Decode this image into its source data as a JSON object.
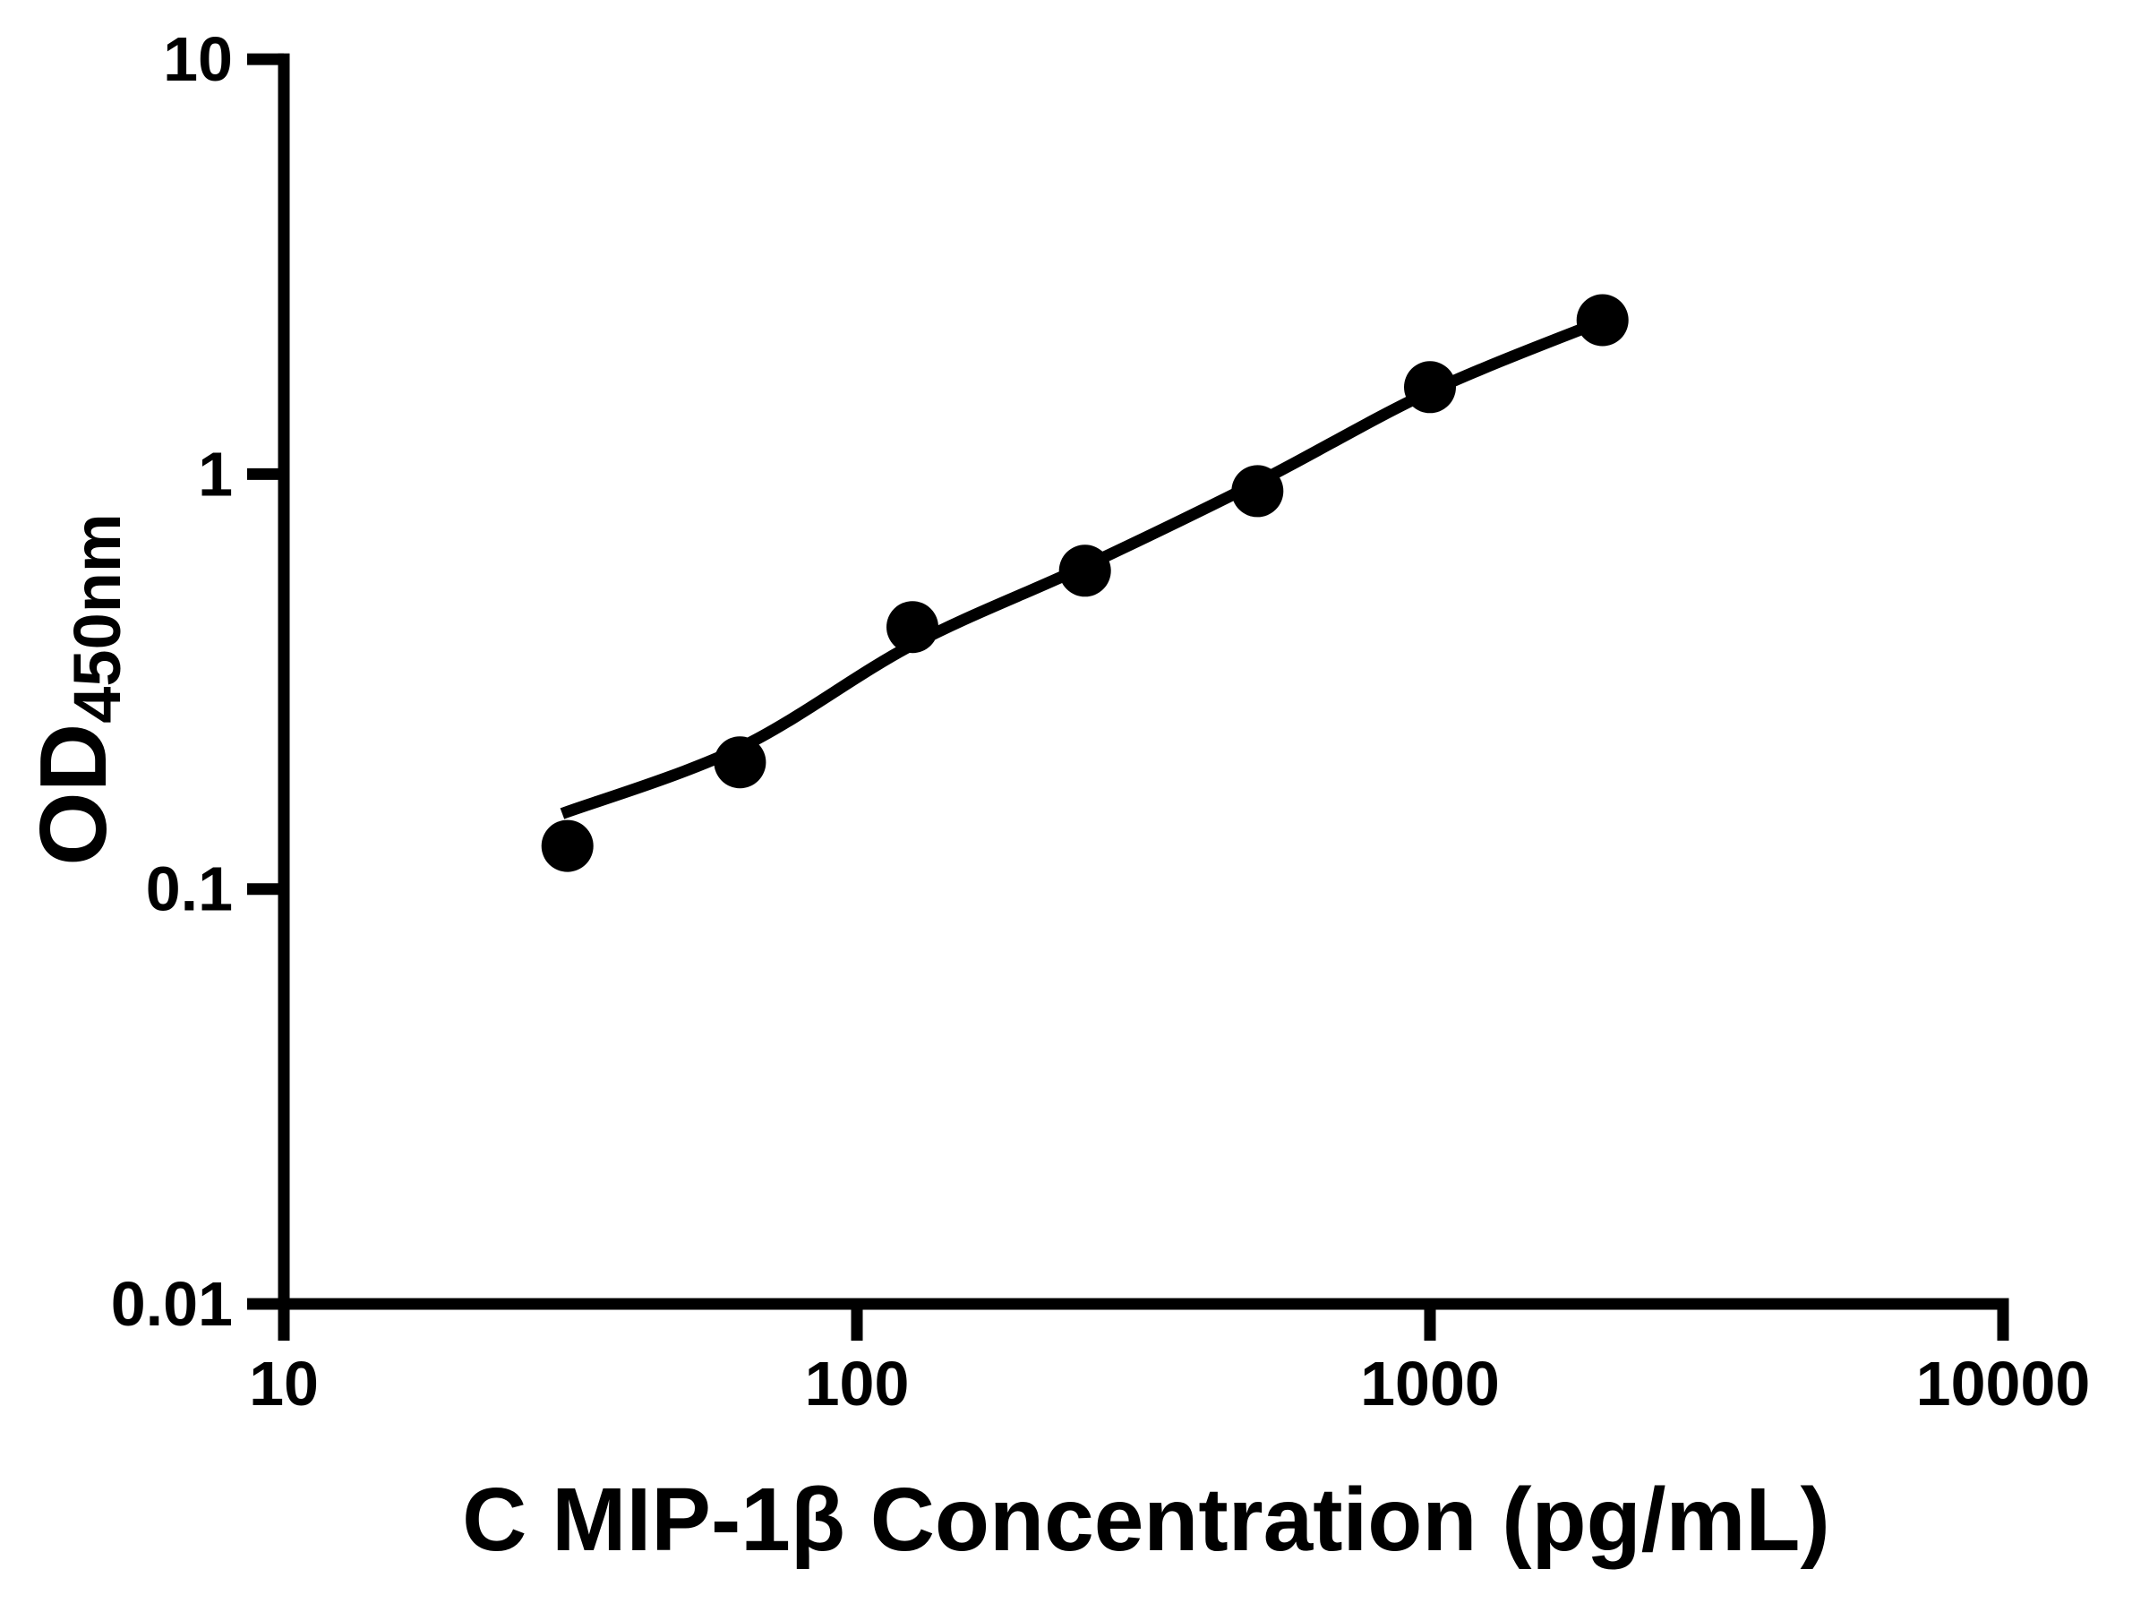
{
  "figure": {
    "background_color": "#ffffff",
    "ink_color": "#000000"
  },
  "chart_data": {
    "type": "scatter",
    "title": "",
    "xlabel": "C MIP-1β Concentration (pg/mL)",
    "ylabel": "OD",
    "ylabel_subscript": "450nm",
    "x_scale": "log",
    "y_scale": "log",
    "xlim": [
      10,
      10000
    ],
    "ylim": [
      0.01,
      10
    ],
    "grid": false,
    "legend": "none",
    "x_ticks": [
      {
        "value": 10,
        "label": "10"
      },
      {
        "value": 100,
        "label": "100"
      },
      {
        "value": 1000,
        "label": "1000"
      },
      {
        "value": 10000,
        "label": "10000"
      }
    ],
    "y_ticks": [
      {
        "value": 10,
        "label": "10"
      },
      {
        "value": 1,
        "label": "1"
      },
      {
        "value": 0.1,
        "label": "0.1"
      },
      {
        "value": 0.01,
        "label": "0.01"
      }
    ],
    "series": [
      {
        "name": "standard-curve-points",
        "marker": "circle",
        "color": "#000000",
        "x": [
          31.25,
          62.5,
          125,
          250,
          500,
          1000,
          2000
        ],
        "y": [
          0.127,
          0.202,
          0.428,
          0.585,
          0.91,
          1.62,
          2.35
        ]
      }
    ],
    "fit_curve": {
      "name": "four-parameter-logistic-fit",
      "color": "#000000",
      "x": [
        30.6,
        62.5,
        125,
        250,
        500,
        1000,
        2000
      ],
      "y": [
        0.152,
        0.219,
        0.388,
        0.6,
        0.955,
        1.58,
        2.34
      ]
    }
  }
}
